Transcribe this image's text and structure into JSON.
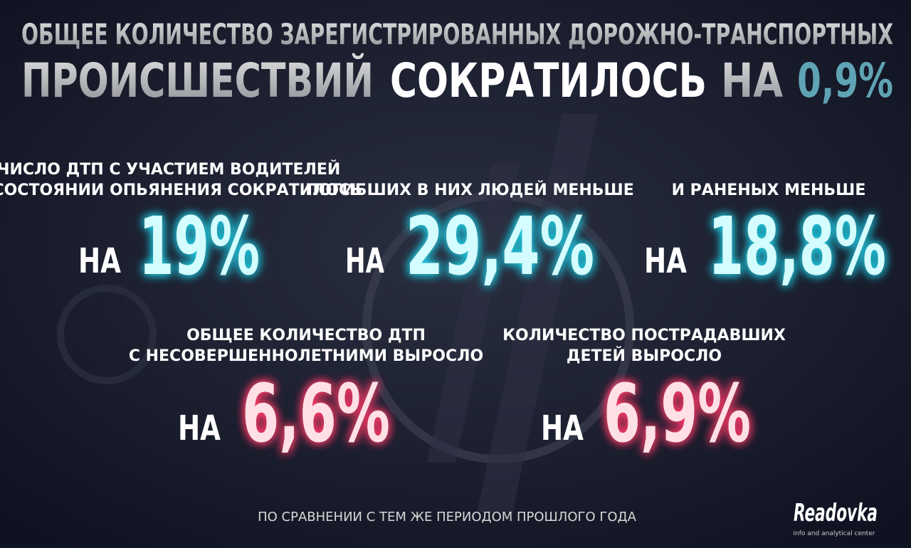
{
  "title": {
    "line1": "ОБЩЕЕ КОЛИЧЕСТВО ЗАРЕГИСТРИРОВАННЫХ ДОРОЖНО-ТРАНСПОРТНЫХ",
    "line2": [
      "ПРОИСШЕСТВИЙ",
      "СОКРАТИЛОСЬ",
      "НА",
      "0,9%"
    ]
  },
  "stats": [
    {
      "caption": [
        "ЧИСЛО ДТП С УЧАСТИЕМ ВОДИТЕЛЕЙ",
        "В СОСТОЯНИИ ОПЬЯНЕНИЯ СОКРАТИЛОСЬ"
      ],
      "prefix": "НА",
      "value": "19%"
    },
    {
      "caption": [
        "ПОГИБШИХ В НИХ ЛЮДЕЙ МЕНЬШЕ"
      ],
      "prefix": "НА",
      "value": "29,4%"
    },
    {
      "caption": [
        "И РАНЕНЫХ МЕНЬШЕ"
      ],
      "prefix": "НА",
      "value": "18,8%"
    },
    {
      "caption": [
        "ОБЩЕЕ КОЛИЧЕСТВО ДТП",
        "С НЕСОВЕРШЕННОЛЕТНИМИ ВЫРОСЛО"
      ],
      "prefix": "НА",
      "value": "6,6%"
    },
    {
      "caption": [
        "КОЛИЧЕСТВО ПОСТРАДАВШИХ",
        "ДЕТЕЙ ВЫРОСЛО"
      ],
      "prefix": "НА",
      "value": "6,9%"
    }
  ],
  "footnote": "ПО СРАВНЕНИИ С ТЕМ ЖЕ ПЕРИОДОМ ПРОШЛОГО ГОДА",
  "logo": {
    "name": "Readovka",
    "tagline": "info and analytical center"
  }
}
